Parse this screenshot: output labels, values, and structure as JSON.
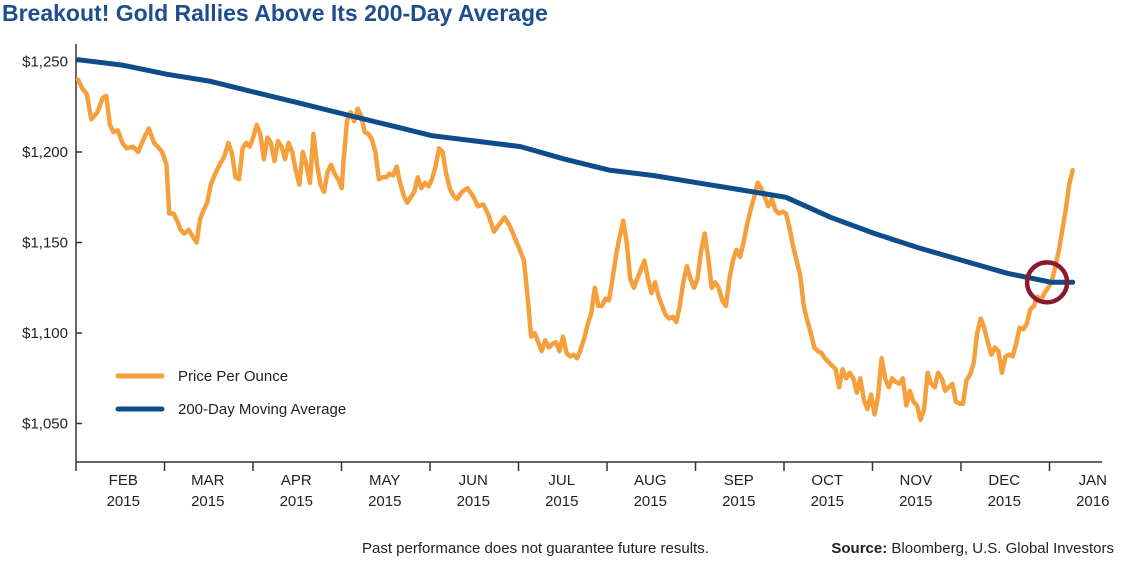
{
  "page": {
    "title": "Breakout! Gold Rallies Above Its 200-Day Average",
    "disclaimer": "Past performance does not guarantee future results.",
    "source_label": "Source:",
    "source_text": "Bloomberg, U.S. Global Investors"
  },
  "colors": {
    "price": "#f5a03c",
    "average": "#0d4d8a",
    "highlight_circle": "#8b1a2e",
    "title": "#1f4e8c"
  },
  "chart_data": {
    "type": "line",
    "title": "Breakout! Gold Rallies Above Its 200-Day Average",
    "xlabel": "",
    "ylabel": "",
    "ylim": [
      1040,
      1257
    ],
    "xlim": [
      0,
      12.2
    ],
    "y_ticks": [
      {
        "value": 1250,
        "label": "$1,250"
      },
      {
        "value": 1200,
        "label": "$1,200"
      },
      {
        "value": 1150,
        "label": "$1,150"
      },
      {
        "value": 1100,
        "label": "$1,100"
      },
      {
        "value": 1050,
        "label": "$1,050"
      }
    ],
    "x_ticks": [
      {
        "line1": "FEB",
        "line2": "2015"
      },
      {
        "line1": "MAR",
        "line2": "2015"
      },
      {
        "line1": "APR",
        "line2": "2015"
      },
      {
        "line1": "MAY",
        "line2": "2015"
      },
      {
        "line1": "JUN",
        "line2": "2015"
      },
      {
        "line1": "JUL",
        "line2": "2015"
      },
      {
        "line1": "AUG",
        "line2": "2015"
      },
      {
        "line1": "SEP",
        "line2": "2015"
      },
      {
        "line1": "OCT",
        "line2": "2015"
      },
      {
        "line1": "NOV",
        "line2": "2015"
      },
      {
        "line1": "DEC",
        "line2": "2015"
      },
      {
        "line1": "JAN",
        "line2": "2016"
      }
    ],
    "grid": false,
    "legend_placement": "bottom-left",
    "series": [
      {
        "name": "Price Per Ounce",
        "points": [
          [
            0.0,
            1240
          ],
          [
            0.05,
            1235
          ],
          [
            0.1,
            1232
          ],
          [
            0.15,
            1218
          ],
          [
            0.22,
            1222
          ],
          [
            0.28,
            1230
          ],
          [
            0.32,
            1231
          ],
          [
            0.36,
            1215
          ],
          [
            0.4,
            1211
          ],
          [
            0.45,
            1212
          ],
          [
            0.5,
            1205
          ],
          [
            0.55,
            1202
          ],
          [
            0.62,
            1203
          ],
          [
            0.68,
            1200
          ],
          [
            0.74,
            1207
          ],
          [
            0.8,
            1213
          ],
          [
            0.86,
            1205
          ],
          [
            0.9,
            1203
          ],
          [
            0.95,
            1200
          ],
          [
            1.0,
            1193
          ],
          [
            1.03,
            1166
          ],
          [
            1.08,
            1166
          ],
          [
            1.12,
            1162
          ],
          [
            1.16,
            1157
          ],
          [
            1.2,
            1155
          ],
          [
            1.25,
            1157
          ],
          [
            1.3,
            1153
          ],
          [
            1.34,
            1150
          ],
          [
            1.38,
            1163
          ],
          [
            1.42,
            1168
          ],
          [
            1.46,
            1172
          ],
          [
            1.5,
            1182
          ],
          [
            1.55,
            1188
          ],
          [
            1.6,
            1193
          ],
          [
            1.65,
            1197
          ],
          [
            1.7,
            1205
          ],
          [
            1.74,
            1199
          ],
          [
            1.78,
            1186
          ],
          [
            1.82,
            1185
          ],
          [
            1.86,
            1202
          ],
          [
            1.9,
            1205
          ],
          [
            1.94,
            1203
          ],
          [
            1.98,
            1208
          ],
          [
            2.02,
            1215
          ],
          [
            2.06,
            1210
          ],
          [
            2.1,
            1196
          ],
          [
            2.14,
            1208
          ],
          [
            2.18,
            1205
          ],
          [
            2.22,
            1195
          ],
          [
            2.26,
            1206
          ],
          [
            2.3,
            1203
          ],
          [
            2.34,
            1196
          ],
          [
            2.38,
            1205
          ],
          [
            2.42,
            1200
          ],
          [
            2.46,
            1190
          ],
          [
            2.5,
            1182
          ],
          [
            2.54,
            1200
          ],
          [
            2.58,
            1193
          ],
          [
            2.62,
            1183
          ],
          [
            2.66,
            1210
          ],
          [
            2.7,
            1193
          ],
          [
            2.74,
            1182
          ],
          [
            2.78,
            1178
          ],
          [
            2.82,
            1189
          ],
          [
            2.86,
            1193
          ],
          [
            2.9,
            1188
          ],
          [
            2.94,
            1185
          ],
          [
            2.98,
            1180
          ],
          [
            3.0,
            1195
          ],
          [
            3.04,
            1217
          ],
          [
            3.08,
            1222
          ],
          [
            3.12,
            1217
          ],
          [
            3.16,
            1224
          ],
          [
            3.2,
            1220
          ],
          [
            3.24,
            1211
          ],
          [
            3.28,
            1210
          ],
          [
            3.32,
            1207
          ],
          [
            3.36,
            1200
          ],
          [
            3.4,
            1185
          ],
          [
            3.44,
            1186
          ],
          [
            3.48,
            1186
          ],
          [
            3.52,
            1188
          ],
          [
            3.56,
            1187
          ],
          [
            3.6,
            1192
          ],
          [
            3.64,
            1183
          ],
          [
            3.68,
            1176
          ],
          [
            3.72,
            1172
          ],
          [
            3.76,
            1175
          ],
          [
            3.8,
            1178
          ],
          [
            3.84,
            1186
          ],
          [
            3.88,
            1180
          ],
          [
            3.92,
            1183
          ],
          [
            3.96,
            1181
          ],
          [
            4.0,
            1185
          ],
          [
            4.04,
            1192
          ],
          [
            4.08,
            1202
          ],
          [
            4.12,
            1200
          ],
          [
            4.16,
            1188
          ],
          [
            4.2,
            1180
          ],
          [
            4.24,
            1176
          ],
          [
            4.28,
            1174
          ],
          [
            4.34,
            1178
          ],
          [
            4.4,
            1180
          ],
          [
            4.46,
            1176
          ],
          [
            4.52,
            1170
          ],
          [
            4.58,
            1171
          ],
          [
            4.64,
            1165
          ],
          [
            4.7,
            1156
          ],
          [
            4.76,
            1160
          ],
          [
            4.82,
            1164
          ],
          [
            4.88,
            1159
          ],
          [
            4.94,
            1152
          ],
          [
            5.0,
            1145
          ],
          [
            5.04,
            1140
          ],
          [
            5.08,
            1120
          ],
          [
            5.12,
            1098
          ],
          [
            5.16,
            1100
          ],
          [
            5.2,
            1095
          ],
          [
            5.24,
            1090
          ],
          [
            5.28,
            1096
          ],
          [
            5.32,
            1092
          ],
          [
            5.36,
            1094
          ],
          [
            5.4,
            1095
          ],
          [
            5.44,
            1090
          ],
          [
            5.48,
            1098
          ],
          [
            5.52,
            1089
          ],
          [
            5.56,
            1087
          ],
          [
            5.6,
            1088
          ],
          [
            5.64,
            1086
          ],
          [
            5.68,
            1091
          ],
          [
            5.72,
            1097
          ],
          [
            5.76,
            1105
          ],
          [
            5.8,
            1111
          ],
          [
            5.84,
            1125
          ],
          [
            5.88,
            1115
          ],
          [
            5.92,
            1115
          ],
          [
            5.96,
            1119
          ],
          [
            6.0,
            1118
          ],
          [
            6.04,
            1130
          ],
          [
            6.08,
            1143
          ],
          [
            6.12,
            1153
          ],
          [
            6.16,
            1162
          ],
          [
            6.2,
            1150
          ],
          [
            6.24,
            1130
          ],
          [
            6.28,
            1125
          ],
          [
            6.32,
            1130
          ],
          [
            6.36,
            1135
          ],
          [
            6.4,
            1140
          ],
          [
            6.44,
            1130
          ],
          [
            6.48,
            1122
          ],
          [
            6.52,
            1128
          ],
          [
            6.56,
            1120
          ],
          [
            6.6,
            1115
          ],
          [
            6.64,
            1110
          ],
          [
            6.68,
            1108
          ],
          [
            6.72,
            1109
          ],
          [
            6.76,
            1106
          ],
          [
            6.8,
            1115
          ],
          [
            6.84,
            1128
          ],
          [
            6.88,
            1137
          ],
          [
            6.92,
            1130
          ],
          [
            6.96,
            1125
          ],
          [
            7.0,
            1130
          ],
          [
            7.04,
            1145
          ],
          [
            7.08,
            1155
          ],
          [
            7.12,
            1142
          ],
          [
            7.16,
            1125
          ],
          [
            7.2,
            1128
          ],
          [
            7.24,
            1125
          ],
          [
            7.28,
            1118
          ],
          [
            7.32,
            1115
          ],
          [
            7.36,
            1130
          ],
          [
            7.4,
            1140
          ],
          [
            7.44,
            1146
          ],
          [
            7.48,
            1142
          ],
          [
            7.52,
            1150
          ],
          [
            7.56,
            1160
          ],
          [
            7.6,
            1168
          ],
          [
            7.64,
            1175
          ],
          [
            7.68,
            1183
          ],
          [
            7.72,
            1180
          ],
          [
            7.76,
            1175
          ],
          [
            7.8,
            1170
          ],
          [
            7.84,
            1174
          ],
          [
            7.88,
            1168
          ],
          [
            7.92,
            1166
          ],
          [
            7.96,
            1167
          ],
          [
            8.0,
            1166
          ],
          [
            8.04,
            1158
          ],
          [
            8.08,
            1148
          ],
          [
            8.12,
            1140
          ],
          [
            8.16,
            1132
          ],
          [
            8.2,
            1115
          ],
          [
            8.24,
            1107
          ],
          [
            8.28,
            1100
          ],
          [
            8.32,
            1092
          ],
          [
            8.36,
            1090
          ],
          [
            8.4,
            1089
          ],
          [
            8.44,
            1086
          ],
          [
            8.48,
            1084
          ],
          [
            8.52,
            1082
          ],
          [
            8.56,
            1080
          ],
          [
            8.6,
            1070
          ],
          [
            8.64,
            1080
          ],
          [
            8.68,
            1075
          ],
          [
            8.72,
            1078
          ],
          [
            8.76,
            1075
          ],
          [
            8.8,
            1067
          ],
          [
            8.84,
            1075
          ],
          [
            8.88,
            1063
          ],
          [
            8.92,
            1058
          ],
          [
            8.96,
            1066
          ],
          [
            9.0,
            1055
          ],
          [
            9.04,
            1065
          ],
          [
            9.08,
            1086
          ],
          [
            9.12,
            1075
          ],
          [
            9.16,
            1070
          ],
          [
            9.2,
            1075
          ],
          [
            9.24,
            1073
          ],
          [
            9.28,
            1072
          ],
          [
            9.32,
            1075
          ],
          [
            9.36,
            1060
          ],
          [
            9.4,
            1068
          ],
          [
            9.44,
            1062
          ],
          [
            9.48,
            1060
          ],
          [
            9.52,
            1052
          ],
          [
            9.56,
            1058
          ],
          [
            9.6,
            1078
          ],
          [
            9.64,
            1072
          ],
          [
            9.68,
            1070
          ],
          [
            9.72,
            1078
          ],
          [
            9.76,
            1075
          ],
          [
            9.8,
            1068
          ],
          [
            9.84,
            1070
          ],
          [
            9.88,
            1072
          ],
          [
            9.92,
            1062
          ],
          [
            9.96,
            1061
          ],
          [
            10.0,
            1061
          ],
          [
            10.04,
            1074
          ],
          [
            10.08,
            1077
          ],
          [
            10.12,
            1083
          ],
          [
            10.16,
            1100
          ],
          [
            10.2,
            1108
          ],
          [
            10.24,
            1103
          ],
          [
            10.28,
            1095
          ],
          [
            10.32,
            1088
          ],
          [
            10.36,
            1092
          ],
          [
            10.4,
            1090
          ],
          [
            10.44,
            1078
          ],
          [
            10.48,
            1087
          ],
          [
            10.52,
            1088
          ],
          [
            10.56,
            1087
          ],
          [
            10.6,
            1094
          ],
          [
            10.64,
            1103
          ],
          [
            10.68,
            1102
          ],
          [
            10.72,
            1105
          ],
          [
            10.76,
            1113
          ],
          [
            10.8,
            1115
          ],
          [
            10.84,
            1120
          ],
          [
            10.88,
            1118
          ],
          [
            10.92,
            1122
          ],
          [
            10.96,
            1125
          ],
          [
            11.0,
            1128
          ],
          [
            11.04,
            1136
          ],
          [
            11.08,
            1145
          ],
          [
            11.12,
            1156
          ],
          [
            11.16,
            1168
          ],
          [
            11.2,
            1182
          ],
          [
            11.24,
            1190
          ]
        ]
      },
      {
        "name": "200-Day Moving Average",
        "points": [
          [
            0.0,
            1251
          ],
          [
            0.5,
            1248
          ],
          [
            1.0,
            1243
          ],
          [
            1.5,
            1239
          ],
          [
            2.0,
            1233
          ],
          [
            2.5,
            1227
          ],
          [
            3.0,
            1221
          ],
          [
            3.5,
            1215
          ],
          [
            4.0,
            1209
          ],
          [
            4.5,
            1206
          ],
          [
            5.0,
            1203
          ],
          [
            5.5,
            1196
          ],
          [
            6.0,
            1190
          ],
          [
            6.5,
            1187
          ],
          [
            7.0,
            1183
          ],
          [
            7.5,
            1179
          ],
          [
            8.0,
            1175
          ],
          [
            8.5,
            1164
          ],
          [
            9.0,
            1155
          ],
          [
            9.5,
            1147
          ],
          [
            10.0,
            1140
          ],
          [
            10.5,
            1133
          ],
          [
            11.0,
            1128
          ],
          [
            11.24,
            1128
          ]
        ]
      }
    ],
    "annotation": {
      "type": "circle",
      "x": 10.95,
      "y": 1128
    }
  },
  "legend": {
    "price_label": "Price Per Ounce",
    "average_label": "200-Day Moving Average"
  }
}
